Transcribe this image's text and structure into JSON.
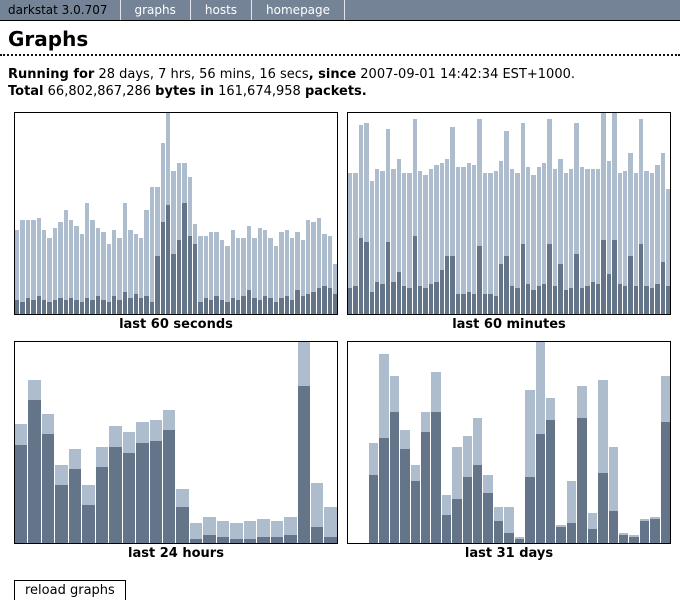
{
  "nav": {
    "brand": "darkstat 3.0.707",
    "items": [
      {
        "label": "graphs"
      },
      {
        "label": "hosts"
      },
      {
        "label": "homepage"
      }
    ]
  },
  "page": {
    "title": "Graphs",
    "running_line": {
      "label1": "Running for",
      "value1": " 28 days, 7 hrs, 56 mins, 16 secs",
      "label2": ", since",
      "value2": " 2007-09-01 14:42:34 EST+1000."
    },
    "total_line": {
      "label1": "Total",
      "value1": " 66,802,867,286 ",
      "label2": "bytes in",
      "value2": " 161,674,958 ",
      "label3": "packets."
    },
    "reload_button": "reload graphs"
  },
  "colors": {
    "nav_bg": "#748496",
    "bar_dark": "#657589",
    "bar_light": "#aebdcd",
    "chart_border": "#000000"
  },
  "chart_data": [
    {
      "type": "bar",
      "stacked": true,
      "label": "last 60 seconds",
      "unit": "percent of graph height",
      "ylim": [
        0,
        100
      ],
      "series": [
        {
          "name": "in-dark-bottom",
          "color": "#657589",
          "values": [
            7,
            6,
            8,
            7,
            9,
            7,
            6,
            7,
            8,
            7,
            8,
            7,
            6,
            8,
            7,
            9,
            7,
            6,
            9,
            7,
            11,
            8,
            10,
            8,
            9,
            6,
            29,
            46,
            54,
            30,
            37,
            55,
            39,
            35,
            6,
            8,
            7,
            9,
            7,
            6,
            8,
            7,
            9,
            12,
            8,
            7,
            9,
            8,
            6,
            8,
            9,
            7,
            12,
            9,
            10,
            11,
            13,
            14,
            13,
            10
          ]
        },
        {
          "name": "out-light-top",
          "color": "#aebdcd",
          "values": [
            35,
            41,
            39,
            40,
            39,
            35,
            32,
            36,
            38,
            45,
            39,
            37,
            34,
            47,
            40,
            34,
            34,
            29,
            33,
            31,
            44,
            34,
            30,
            30,
            43,
            57,
            34,
            39,
            52,
            41,
            38,
            20,
            29,
            10,
            33,
            31,
            34,
            32,
            30,
            28,
            34,
            31,
            29,
            32,
            30,
            36,
            33,
            30,
            28,
            33,
            33,
            31,
            29,
            28,
            37,
            35,
            35,
            26,
            26,
            15
          ]
        }
      ]
    },
    {
      "type": "bar",
      "stacked": true,
      "label": "last 60 minutes",
      "unit": "percent of graph height",
      "ylim": [
        0,
        100
      ],
      "series": [
        {
          "name": "in-dark-bottom",
          "color": "#657589",
          "values": [
            13,
            14,
            38,
            36,
            11,
            16,
            15,
            36,
            16,
            21,
            14,
            13,
            39,
            14,
            13,
            15,
            16,
            22,
            29,
            29,
            10,
            10,
            11,
            10,
            34,
            10,
            10,
            9,
            25,
            29,
            14,
            13,
            35,
            15,
            12,
            14,
            15,
            35,
            14,
            25,
            12,
            13,
            30,
            13,
            14,
            16,
            15,
            37,
            20,
            37,
            15,
            14,
            29,
            14,
            35,
            14,
            13,
            15,
            26,
            14
          ]
        },
        {
          "name": "out-light-top",
          "color": "#aebdcd",
          "values": [
            57,
            56,
            56,
            59,
            55,
            56,
            56,
            56,
            56,
            56,
            56,
            57,
            58,
            57,
            56,
            57,
            58,
            53,
            48,
            64,
            63,
            63,
            64,
            64,
            63,
            60,
            60,
            62,
            51,
            62,
            58,
            57,
            60,
            58,
            57,
            59,
            60,
            62,
            58,
            52,
            58,
            59,
            65,
            60,
            58,
            56,
            57,
            63,
            56,
            63,
            55,
            57,
            51,
            56,
            62,
            57,
            57,
            59,
            54,
            48
          ]
        }
      ]
    },
    {
      "type": "bar",
      "stacked": true,
      "label": "last 24 hours",
      "unit": "percent of graph height",
      "ylim": [
        0,
        100
      ],
      "series": [
        {
          "name": "in-dark-bottom",
          "color": "#657589",
          "values": [
            49,
            71,
            54,
            29,
            37,
            19,
            38,
            48,
            45,
            50,
            51,
            56,
            18,
            2,
            4,
            3,
            2,
            2,
            3,
            3,
            4,
            78,
            8,
            3
          ]
        },
        {
          "name": "out-light-top",
          "color": "#aebdcd",
          "values": [
            10,
            10,
            10,
            10,
            10,
            10,
            10,
            10,
            10,
            10,
            10,
            10,
            9,
            8,
            9,
            8,
            8,
            9,
            9,
            8,
            9,
            22,
            22,
            15
          ]
        }
      ]
    },
    {
      "type": "bar",
      "stacked": true,
      "label": "last 31 days",
      "unit": "percent of graph height",
      "ylim": [
        0,
        100
      ],
      "series": [
        {
          "name": "in-dark-bottom",
          "color": "#657589",
          "values": [
            0,
            0,
            34,
            52,
            65,
            47,
            31,
            55,
            65,
            14,
            22,
            33,
            39,
            25,
            11,
            5,
            2,
            33,
            54,
            61,
            8,
            10,
            62,
            7,
            35,
            16,
            4,
            3,
            11,
            12,
            60
          ]
        },
        {
          "name": "out-light-top",
          "color": "#aebdcd",
          "values": [
            0,
            0,
            16,
            42,
            18,
            9,
            8,
            10,
            20,
            10,
            26,
            20,
            23,
            9,
            7,
            13,
            1,
            43,
            50,
            11,
            1,
            21,
            16,
            8,
            46,
            32,
            1,
            1,
            1,
            1,
            23
          ]
        }
      ]
    }
  ]
}
